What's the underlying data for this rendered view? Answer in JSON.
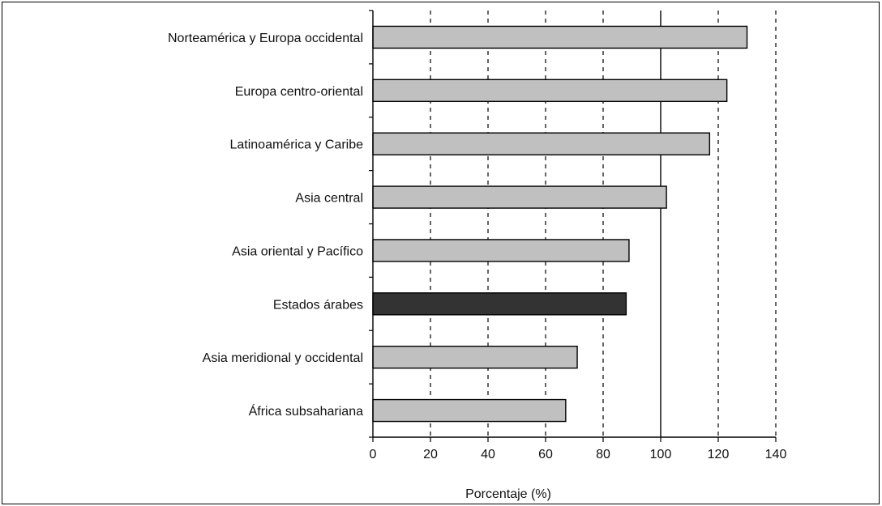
{
  "chart_data": {
    "type": "bar",
    "orientation": "horizontal",
    "title": "",
    "xlabel": "Porcentaje (%)",
    "ylabel": "",
    "xlim": [
      0,
      140
    ],
    "xticks": [
      0,
      20,
      40,
      60,
      80,
      100,
      120,
      140
    ],
    "grid": "vertical dashed",
    "reference_line": 100,
    "categories": [
      "Norteamérica y Europa occidental",
      "Europa centro-oriental",
      "Latinoamérica y Caribe",
      "Asia central",
      "Asia oriental y Pacífico",
      "Estados árabes",
      "Asia meridional y occidental",
      "África subsahariana"
    ],
    "values": [
      130,
      123,
      117,
      102,
      89,
      88,
      71,
      67
    ],
    "highlight_index": 5,
    "colors": {
      "bar": "#c0c0c0",
      "highlight": "#333333",
      "bar_stroke": "#000000"
    }
  }
}
